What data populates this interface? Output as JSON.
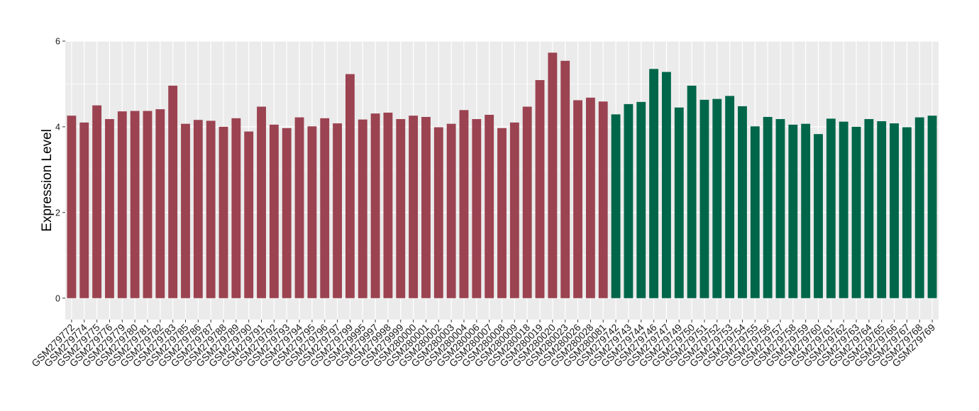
{
  "chart_data": {
    "type": "bar",
    "title": "",
    "xlabel": "",
    "ylabel": "Expression Level",
    "ylim": [
      -0.5,
      6
    ],
    "yticks": [
      0,
      2,
      4,
      6
    ],
    "grid": true,
    "legend": "none",
    "colors": {
      "group_1": "#9b4351",
      "group_2": "#00664a",
      "panel": "#ebebeb",
      "gridline": "#ffffff"
    },
    "categories": [
      "GSM279772",
      "GSM279774",
      "GSM279775",
      "GSM279776",
      "GSM279779",
      "GSM279780",
      "GSM279781",
      "GSM279782",
      "GSM279783",
      "GSM279785",
      "GSM279786",
      "GSM279787",
      "GSM279788",
      "GSM279789",
      "GSM279790",
      "GSM279791",
      "GSM279792",
      "GSM279793",
      "GSM279794",
      "GSM279795",
      "GSM279796",
      "GSM279797",
      "GSM279799",
      "GSM279995",
      "GSM279997",
      "GSM279998",
      "GSM279999",
      "GSM280000",
      "GSM280001",
      "GSM280002",
      "GSM280003",
      "GSM280004",
      "GSM280006",
      "GSM280007",
      "GSM280008",
      "GSM280009",
      "GSM280018",
      "GSM280019",
      "GSM280020",
      "GSM280023",
      "GSM280026",
      "GSM280028",
      "GSM280081",
      "GSM279742",
      "GSM279743",
      "GSM279744",
      "GSM279746",
      "GSM279747",
      "GSM279749",
      "GSM279750",
      "GSM279751",
      "GSM279752",
      "GSM279753",
      "GSM279754",
      "GSM279755",
      "GSM279756",
      "GSM279757",
      "GSM279758",
      "GSM279759",
      "GSM279760",
      "GSM279761",
      "GSM279762",
      "GSM279763",
      "GSM279764",
      "GSM279765",
      "GSM279766",
      "GSM279767",
      "GSM279768",
      "GSM279769"
    ],
    "values": [
      4.26,
      4.1,
      4.5,
      4.18,
      4.36,
      4.37,
      4.37,
      4.41,
      4.96,
      4.07,
      4.16,
      4.14,
      4.0,
      4.2,
      3.89,
      4.47,
      4.05,
      3.97,
      4.22,
      4.01,
      4.2,
      4.08,
      5.23,
      4.17,
      4.31,
      4.33,
      4.18,
      4.26,
      4.23,
      3.99,
      4.07,
      4.39,
      4.18,
      4.28,
      3.97,
      4.1,
      4.47,
      5.09,
      5.73,
      5.54,
      4.62,
      4.68,
      4.59,
      4.29,
      4.53,
      4.58,
      5.35,
      5.28,
      4.45,
      4.96,
      4.63,
      4.65,
      4.72,
      4.48,
      4.01,
      4.23,
      4.18,
      4.05,
      4.07,
      3.83,
      4.19,
      4.12,
      4.0,
      4.18,
      4.13,
      4.08,
      3.99,
      4.22,
      4.26
    ],
    "groups": [
      1,
      1,
      1,
      1,
      1,
      1,
      1,
      1,
      1,
      1,
      1,
      1,
      1,
      1,
      1,
      1,
      1,
      1,
      1,
      1,
      1,
      1,
      1,
      1,
      1,
      1,
      1,
      1,
      1,
      1,
      1,
      1,
      1,
      1,
      1,
      1,
      1,
      1,
      1,
      1,
      1,
      1,
      1,
      2,
      2,
      2,
      2,
      2,
      2,
      2,
      2,
      2,
      2,
      2,
      2,
      2,
      2,
      2,
      2,
      2,
      2,
      2,
      2,
      2,
      2,
      2,
      2,
      2,
      2
    ]
  }
}
